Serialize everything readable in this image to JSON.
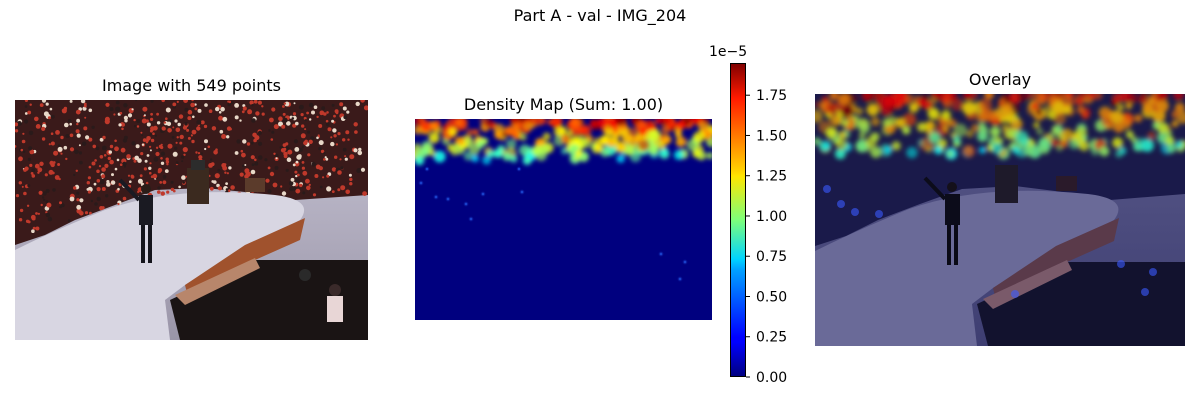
{
  "suptitle": "Part A - val - IMG_204",
  "panels": {
    "image": {
      "title": "Image with 549 points"
    },
    "density": {
      "title": "Density Map (Sum: 1.00)"
    },
    "overlay": {
      "title": "Overlay"
    }
  },
  "colorbar": {
    "exponent_label": "1e−5",
    "colormap": "jet",
    "min": 0.0,
    "max": 1.95,
    "ticks": [
      "0.00",
      "0.25",
      "0.50",
      "0.75",
      "1.00",
      "1.25",
      "1.50",
      "1.75"
    ],
    "tick_values": [
      0.0,
      0.25,
      0.5,
      0.75,
      1.0,
      1.25,
      1.5,
      1.75
    ]
  },
  "chart_data": {
    "type": "heatmap",
    "title": "Density Map (Sum: 1.00)",
    "point_count": 549,
    "density_sum": 1.0,
    "value_range": [
      0.0,
      1.95
    ],
    "value_scale_exponent": -5
  },
  "colors": {
    "jet_low": "#00007f",
    "jet_high": "#7f0000",
    "crowd_red": "#c0392b"
  }
}
